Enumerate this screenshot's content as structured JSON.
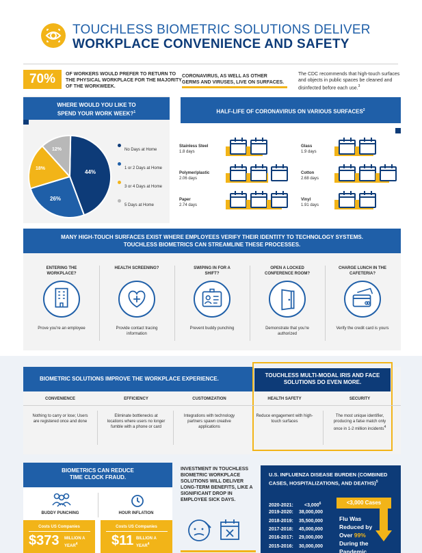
{
  "header": {
    "line1": "TOUCHLESS BIOMETRIC SOLUTIONS DELIVER",
    "line2": "WORKPLACE CONVENIENCE AND SAFETY"
  },
  "stats": {
    "pct": "70%",
    "pct_text": "OF WORKERS WOULD PREFER TO RETURN TO THE PHYSICAL WORKPLACE FOR THE MAJORITY OF THE WORKWEEK.",
    "corona_text": "CORONAVIRUS, AS WELL AS OTHER GERMS AND VIRUSES, LIVE ON SURFACES.",
    "cdc_text": "The CDC recommends that high-touch surfaces and objects in public spaces be cleaned and disinfected before each use.",
    "cdc_sup": "3"
  },
  "work_week": {
    "title": "WHERE WOULD YOU LIKE TO SPEND YOUR WORK WEEK?",
    "title_sup": "1",
    "pie_labels": [
      "44%",
      "26%",
      "18%",
      "12%"
    ],
    "legend": [
      "No Days at Home",
      "1 or 2 Days at Home",
      "3 or 4 Days at Home",
      "5 Days at Home"
    ],
    "colors": [
      "#0d3b78",
      "#1f5fa8",
      "#f2b418",
      "#b8b8b8"
    ]
  },
  "chart_data": {
    "type": "pie",
    "categories": [
      "No Days at Home",
      "1 or 2 Days at Home",
      "3 or 4 Days at Home",
      "5 Days at Home"
    ],
    "values": [
      44,
      26,
      18,
      12
    ],
    "title": "WHERE WOULD YOU LIKE TO SPEND YOUR WORK WEEK?"
  },
  "halflife": {
    "title": "HALF-LIFE OF CORONAVIRUS ON VARIOUS SURFACES",
    "title_sup": "2",
    "surfaces": [
      {
        "name": "Stainless Steel",
        "days": "1.8 days",
        "value": 1.8
      },
      {
        "name": "Polymer/plastic",
        "days": "2.06 days",
        "value": 2.06
      },
      {
        "name": "Paper",
        "days": "2.74 days",
        "value": 2.74
      },
      {
        "name": "Glass",
        "days": "1.9 days",
        "value": 1.9
      },
      {
        "name": "Cotton",
        "days": "2.68 days",
        "value": 2.68
      },
      {
        "name": "Vinyl",
        "days": "1.91 days",
        "value": 1.91
      }
    ]
  },
  "touch": {
    "banner1": "MANY HIGH-TOUCH SURFACES EXIST WHERE EMPLOYEES VERIFY THEIR IDENTITY TO TECHNOLOGY SYSTEMS.",
    "banner2": "TOUCHLESS BIOMETRICS CAN STREAMLINE THESE PROCESSES.",
    "items": [
      {
        "q": "ENTERING THE WORKPLACE?",
        "a": "Prove you're an employee",
        "icon": "building-icon"
      },
      {
        "q": "HEALTH SCREENING?",
        "a": "Provide contact tracing information",
        "icon": "heart-plus-icon"
      },
      {
        "q": "SWIPING IN FOR A SHIFT?",
        "a": "Prevent buddy punching",
        "icon": "id-badge-icon"
      },
      {
        "q": "OPEN A LOCKED CONFERENCE ROOM?",
        "a": "Demonstrate that you're authorized",
        "icon": "door-icon"
      },
      {
        "q": "CHARGE LUNCH IN THE CAFETERIA?",
        "a": "Verify the credit card is yours",
        "icon": "credit-card-icon"
      }
    ]
  },
  "biometric": {
    "banner": "BIOMETRIC SOLUTIONS IMPROVE THE WORKPLACE EXPERIENCE.",
    "iris_banner": "TOUCHLESS MULTI-MODAL IRIS AND FACE SOLUTIONS DO EVEN MORE.",
    "cols": [
      {
        "head": "CONVENIENCE",
        "body": "Nothing to carry or lose; Users are registered once and done"
      },
      {
        "head": "EFFICIENCY",
        "body": "Eliminate bottlenecks at locations where users no longer fumble with a phone or card"
      },
      {
        "head": "CUSTOMIZATION",
        "body": "Integrations with technology partners spawn creative applications"
      },
      {
        "head": "HEALTH SAFETY",
        "body": "Reduce engagement with high-touch surfaces"
      },
      {
        "head": "SECURITY",
        "body": "The most unique identifier, producing a false match only once in 1-2 million incidents"
      }
    ],
    "security_sup": "4"
  },
  "fraud": {
    "title": "BIOMETRICS CAN REDUCE TIME CLOCK FRAUD.",
    "left_label": "BUDDY PUNCHING",
    "right_label": "HOUR INFLATION",
    "costs_label": "Costs US Companies",
    "left_amount": "$373",
    "left_unit": "MILLION A YEAR",
    "left_sup": "4",
    "right_amount": "$11",
    "right_unit": "BILLION A YEAR",
    "right_sup": "4"
  },
  "investment": {
    "text": "INVESTMENT IN TOUCHLESS BIOMETRIC WORKPLACE SOLUTIONS WILL DELIVER LONG-TERM BENEFITS, LIKE A SIGNIFICANT DROP IN EMPLOYEE SICK DAYS."
  },
  "flu": {
    "title": "U.S. INFLUENZA DISEASE BURDEN (COMBINED CASES, HOSPITALIZATIONS, AND DEATHS)",
    "title_sup": "5",
    "rows": [
      {
        "season": "2020-2021:",
        "value": "<3,000",
        "sup": "6"
      },
      {
        "season": "2019-2020:",
        "value": "38,000,000",
        "sup": ""
      },
      {
        "season": "2018-2019:",
        "value": "35,500,000",
        "sup": ""
      },
      {
        "season": "2017-2018:",
        "value": "45,000,000",
        "sup": ""
      },
      {
        "season": "2016-2017:",
        "value": "29,000,000",
        "sup": ""
      },
      {
        "season": "2015-2016:",
        "value": "30,000,000",
        "sup": ""
      }
    ],
    "callout_head": "<3,000 Cases",
    "callout_l1": "Flu Was",
    "callout_l2": "Reduced by",
    "callout_l3a": "Over",
    "callout_l3b": "99%",
    "callout_l4": "During the",
    "callout_l5": "Pandemic"
  }
}
